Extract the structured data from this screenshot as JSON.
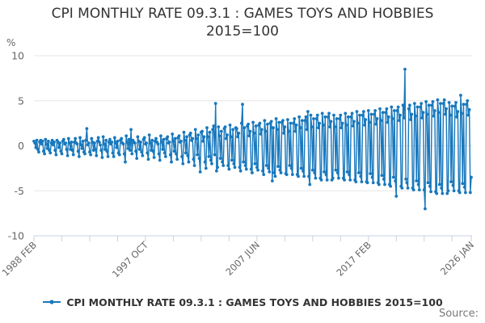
{
  "title": "CPI MONTHLY RATE 09.3.1 : GAMES TOYS AND HOBBIES 2015=100",
  "y_axis_unit": "%",
  "legend": {
    "label": "CPI MONTHLY RATE 09.3.1 : GAMES TOYS AND HOBBIES 2015=100"
  },
  "source_label": "Source:",
  "colors": {
    "line": "#1878bd",
    "grid": "#e6e6e6",
    "axis": "#c9d2e2",
    "title_text": "#333333",
    "tick_text": "#666666",
    "source_text": "#777777"
  },
  "chart_data": {
    "type": "line",
    "title": "CPI MONTHLY RATE 09.3.1 : GAMES TOYS AND HOBBIES 2015=100",
    "ylabel": "%",
    "ylim": [
      -10,
      10
    ],
    "y_ticks": [
      10,
      5,
      0,
      -5,
      -10
    ],
    "grid": true,
    "legend_position": "bottom",
    "x_start": "1988 FEB",
    "x_end": "2026 JAN",
    "x_tick_labels": [
      "1988 FEB",
      "1997 OCT",
      "2007 JUN",
      "2017 FEB",
      "2026 JAN"
    ],
    "x_tick_label_months": [
      0,
      116,
      232,
      348,
      455
    ],
    "minor_tick_step_months": 29,
    "points_are_monthly": true,
    "values": [
      0.5,
      0.3,
      -0.2,
      0.6,
      -0.4,
      -0.7,
      0.4,
      0.6,
      0.2,
      0.5,
      -0.6,
      -0.9,
      0.7,
      0.2,
      -0.3,
      0.5,
      -0.5,
      -0.8,
      0.3,
      0.6,
      0.1,
      0.4,
      -0.5,
      -1.0,
      0.6,
      0.4,
      -0.2,
      0.3,
      -0.6,
      -0.9,
      0.5,
      0.7,
      0.2,
      0.3,
      -0.4,
      -1.1,
      0.8,
      0.3,
      -0.4,
      0.4,
      -0.5,
      -1.0,
      0.4,
      0.8,
      0.3,
      0.2,
      -0.6,
      -1.2,
      0.9,
      0.1,
      -0.3,
      0.5,
      -0.7,
      -0.9,
      0.6,
      1.9,
      0.1,
      0.3,
      -0.7,
      -1.0,
      0.8,
      0.4,
      -0.5,
      0.3,
      -0.4,
      -1.1,
      0.5,
      0.9,
      0.4,
      0.1,
      -0.5,
      -1.3,
      1.0,
      0.2,
      -0.4,
      0.6,
      -0.6,
      -1.2,
      0.4,
      0.7,
      0.2,
      0.4,
      -0.8,
      -1.2,
      0.9,
      0.3,
      -0.2,
      0.5,
      -0.8,
      -1.0,
      0.6,
      0.8,
      0.3,
      0.2,
      -0.9,
      -1.8,
      1.1,
      0.4,
      -0.3,
      0.7,
      -0.5,
      1.8,
      -0.9,
      0.6,
      0.4,
      0.3,
      -0.6,
      -1.4,
      1.0,
      0.5,
      -0.4,
      0.4,
      -0.7,
      -1.1,
      0.7,
      0.9,
      0.2,
      0.3,
      -0.8,
      -1.5,
      1.2,
      0.3,
      -0.5,
      0.6,
      -0.6,
      -1.3,
      0.5,
      0.8,
      0.4,
      0.2,
      -0.9,
      -1.6,
      1.1,
      0.4,
      -0.4,
      0.7,
      -0.8,
      -1.2,
      0.8,
      1.0,
      0.3,
      0.4,
      -1.0,
      -1.8,
      1.3,
      0.5,
      -0.6,
      0.8,
      -0.9,
      -1.5,
      0.9,
      1.1,
      0.4,
      0.5,
      -1.2,
      -2.0,
      1.5,
      0.6,
      -0.8,
      1.0,
      -1.1,
      -1.8,
      1.2,
      1.4,
      0.6,
      0.8,
      -1.5,
      -2.2,
      1.8,
      0.8,
      -1.0,
      1.2,
      -1.4,
      -2.9,
      1.5,
      1.6,
      0.5,
      1.0,
      -1.8,
      -2.5,
      2.0,
      1.0,
      -1.2,
      1.5,
      -1.6,
      -2.0,
      1.8,
      2.2,
      -1.0,
      4.7,
      -2.8,
      -2.4,
      2.1,
      1.1,
      -1.4,
      1.6,
      -1.8,
      -2.2,
      1.9,
      2.1,
      0.8,
      1.2,
      -2.2,
      -2.6,
      2.3,
      1.0,
      -1.6,
      1.8,
      -2.0,
      -2.4,
      2.0,
      1.9,
      1.0,
      1.4,
      -2.4,
      -2.8,
      2.5,
      4.6,
      -1.8,
      2.0,
      -2.2,
      -2.6,
      2.2,
      2.4,
      1.1,
      1.6,
      -2.6,
      -3.0,
      2.6,
      1.4,
      -2.0,
      2.2,
      -2.4,
      -2.7,
      2.3,
      2.5,
      1.3,
      1.8,
      -2.8,
      -3.2,
      2.8,
      1.6,
      -2.2,
      2.4,
      -2.5,
      -2.9,
      2.5,
      2.7,
      -3.9,
      2.0,
      -3.0,
      -3.4,
      3.0,
      1.8,
      -2.3,
      2.6,
      -2.7,
      -3.0,
      2.6,
      2.8,
      1.4,
      2.1,
      -3.1,
      -3.2,
      2.9,
      1.6,
      -2.2,
      2.5,
      -2.5,
      -3.2,
      2.5,
      3.0,
      1.6,
      2.3,
      -3.2,
      -3.4,
      3.2,
      2.0,
      -2.5,
      2.8,
      -2.8,
      -3.4,
      2.8,
      3.2,
      1.8,
      3.8,
      -3.4,
      -4.3,
      3.4,
      2.1,
      -2.7,
      3.0,
      -3.0,
      -3.6,
      3.0,
      3.4,
      2.0,
      2.5,
      -3.6,
      -3.8,
      3.6,
      2.3,
      -2.9,
      3.2,
      -3.2,
      -3.8,
      3.2,
      3.6,
      2.1,
      2.7,
      -3.8,
      -3.6,
      3.4,
      2.1,
      -2.7,
      3.0,
      -3.0,
      -3.6,
      3.0,
      3.4,
      2.0,
      2.5,
      -3.6,
      -3.8,
      3.6,
      2.3,
      -2.9,
      3.2,
      -3.2,
      -3.8,
      3.2,
      3.6,
      2.2,
      2.7,
      -3.8,
      -4.0,
      3.8,
      2.5,
      -3.0,
      3.4,
      -3.4,
      -4.0,
      3.4,
      3.8,
      2.3,
      2.9,
      -4.0,
      -4.1,
      3.9,
      2.6,
      -3.1,
      3.5,
      -3.5,
      -4.1,
      3.5,
      3.9,
      2.4,
      3.0,
      -4.1,
      -4.3,
      4.1,
      2.8,
      -3.3,
      3.7,
      -3.7,
      -4.3,
      3.7,
      4.1,
      2.6,
      3.2,
      -4.3,
      -4.5,
      4.3,
      3.0,
      -3.5,
      3.9,
      -3.9,
      -5.6,
      3.9,
      4.3,
      2.8,
      3.4,
      -4.5,
      -4.7,
      4.5,
      3.1,
      8.5,
      -3.7,
      -4.1,
      -4.7,
      4.1,
      4.5,
      2.9,
      3.5,
      -4.7,
      -4.9,
      4.7,
      3.3,
      -3.9,
      4.3,
      -4.3,
      -4.9,
      4.3,
      4.7,
      3.1,
      3.7,
      -4.9,
      -7.0,
      4.9,
      3.5,
      -4.1,
      4.5,
      -4.5,
      -5.1,
      4.5,
      4.9,
      3.3,
      3.9,
      -5.1,
      -5.3,
      5.1,
      3.7,
      -4.3,
      4.7,
      -4.7,
      -5.3,
      4.7,
      5.1,
      3.5,
      4.1,
      -5.3,
      -5.0,
      4.8,
      3.4,
      -4.0,
      4.4,
      -4.4,
      -5.0,
      4.4,
      4.8,
      3.2,
      3.8,
      -5.0,
      -5.2,
      5.6,
      3.6,
      -4.2,
      4.6,
      -4.6,
      -5.2,
      4.6,
      5.0,
      3.4,
      4.0,
      -5.2,
      -3.5
    ]
  }
}
